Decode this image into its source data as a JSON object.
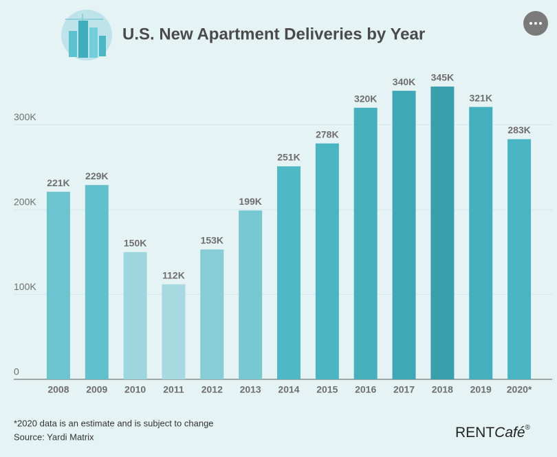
{
  "chart_data": {
    "type": "bar",
    "title": "U.S. New Apartment Deliveries by Year",
    "categories": [
      "2008",
      "2009",
      "2010",
      "2011",
      "2012",
      "2013",
      "2014",
      "2015",
      "2016",
      "2017",
      "2018",
      "2019",
      "2020*"
    ],
    "values": [
      221000,
      229000,
      150000,
      112000,
      153000,
      199000,
      251000,
      278000,
      320000,
      340000,
      345000,
      321000,
      283000
    ],
    "value_labels": [
      "221K",
      "229K",
      "150K",
      "112K",
      "153K",
      "199K",
      "251K",
      "278K",
      "320K",
      "340K",
      "345K",
      "321K",
      "283K"
    ],
    "colors": [
      "#6cc4cf",
      "#62c0cc",
      "#9dd6dd",
      "#a7dae0",
      "#86cdd6",
      "#78c8d2",
      "#50b9c6",
      "#4ab5c2",
      "#45b0bd",
      "#3ea8b6",
      "#3a9fad",
      "#45b0bd",
      "#4ab5c2"
    ],
    "ylim": [
      0,
      400000
    ],
    "yticks": [
      0,
      {
        "value": 100000,
        "label": "100K"
      },
      {
        "value": 200000,
        "label": "200K"
      },
      {
        "value": 300000,
        "label": "300K"
      }
    ],
    "grid": true,
    "footnote": "*2020 data is an estimate and is subject to change",
    "source": "Source: Yardi Matrix"
  },
  "logo": {
    "brand": "RENT",
    "cafe": "Café",
    "mark": "®"
  }
}
